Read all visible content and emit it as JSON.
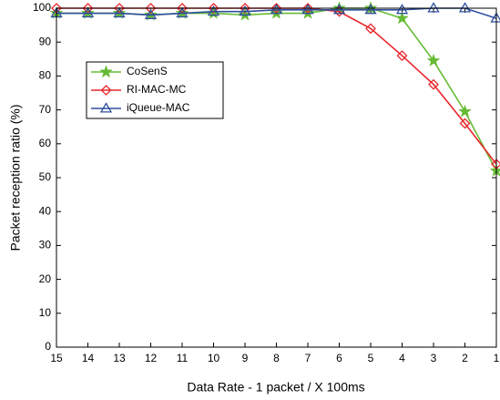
{
  "chart_data": {
    "type": "line",
    "x_label": "Data Rate - 1 packet / X 100ms",
    "y_label": "Packet reception ratio (%)",
    "categories": [
      15,
      14,
      13,
      12,
      11,
      10,
      9,
      8,
      7,
      6,
      5,
      4,
      3,
      2,
      1
    ],
    "series": [
      {
        "name": "CoSenS",
        "color": "#66bb33",
        "marker": "star",
        "values": [
          98.5,
          98.5,
          98.5,
          98,
          98.5,
          98.5,
          98,
          98.5,
          98.5,
          100,
          100,
          97,
          84.5,
          69.5,
          52
        ]
      },
      {
        "name": "RI-MAC-MC",
        "color": "#e8262b",
        "marker": "diamond",
        "values": [
          100,
          100,
          100,
          100,
          100,
          100,
          100,
          100,
          100,
          99,
          94,
          86,
          77.5,
          66,
          54
        ]
      },
      {
        "name": "iQueue-MAC",
        "color": "#2e4f9e",
        "marker": "triangle",
        "values": [
          98.5,
          98.5,
          98.5,
          98,
          98.5,
          99,
          99,
          99.5,
          99.5,
          99.5,
          99.5,
          99.5,
          100,
          100,
          97
        ]
      }
    ],
    "ylim": [
      0,
      100
    ],
    "yticks": [
      0,
      10,
      20,
      30,
      40,
      50,
      60,
      70,
      80,
      90,
      100
    ],
    "grid": false,
    "legend": "upper-left"
  }
}
